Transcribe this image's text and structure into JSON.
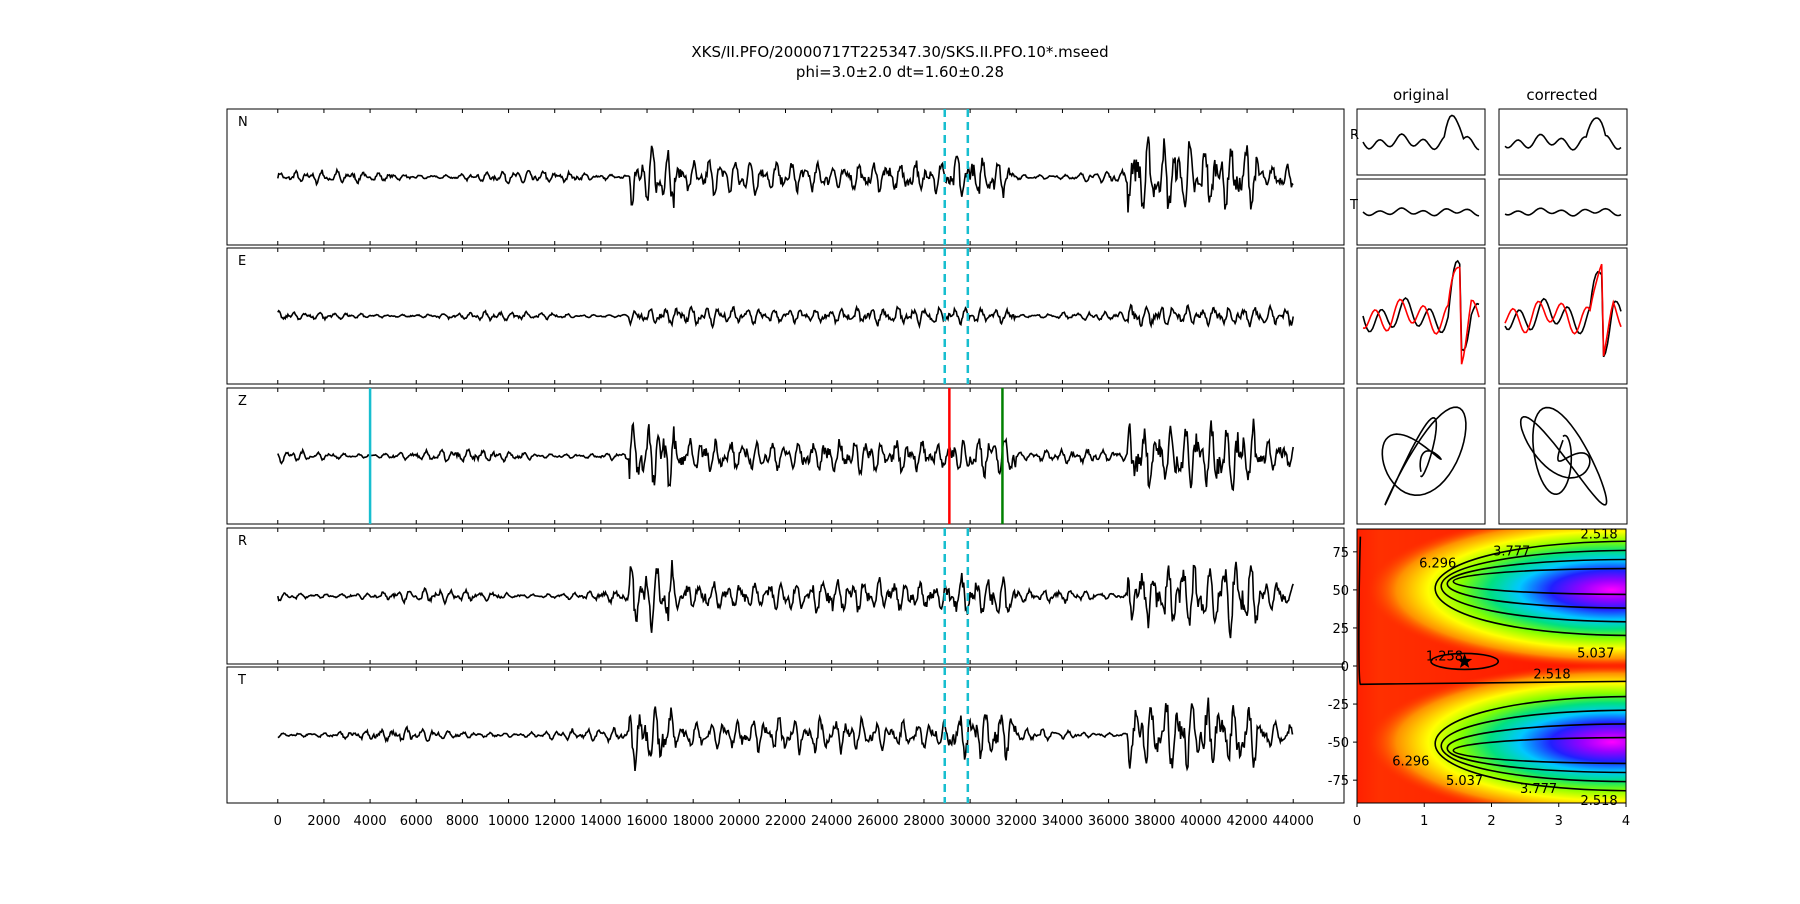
{
  "title": "XKS/II.PFO/20000717T225347.30/SKS.II.PFO.10*.mseed",
  "subtitle": "phi=3.0±2.0 dt=1.60±0.28",
  "chart_data": [
    {
      "type": "line",
      "panel": "waveforms",
      "traces": [
        "N",
        "E",
        "Z",
        "R",
        "T"
      ],
      "x_ticks": [
        0,
        2000,
        4000,
        6000,
        8000,
        10000,
        12000,
        14000,
        16000,
        18000,
        20000,
        22000,
        24000,
        26000,
        28000,
        30000,
        32000,
        34000,
        36000,
        38000,
        40000,
        42000,
        44000
      ],
      "xlim": [
        -2200,
        46200
      ],
      "x_extent": [
        0,
        44000
      ],
      "window_dashed": [
        28900,
        29900
      ],
      "window_color": "#17becf",
      "z_picks": [
        {
          "x": 4000,
          "color": "#17becf"
        },
        {
          "x": 29100,
          "color": "#ff0000"
        },
        {
          "x": 31400,
          "color": "#008000"
        }
      ]
    },
    {
      "type": "line",
      "panel": "particle-motion",
      "column_titles": [
        "original",
        "corrected"
      ],
      "row_labels": [
        "R",
        "T"
      ],
      "series_colors": [
        "#000000",
        "#ff0000"
      ]
    },
    {
      "type": "heatmap",
      "panel": "energy-grid",
      "x_ticks": [
        0,
        1,
        2,
        3,
        4
      ],
      "y_ticks": [
        75,
        50,
        25,
        0,
        -25,
        -50,
        -75
      ],
      "xlim": [
        0,
        4
      ],
      "ylim": [
        -90,
        90
      ],
      "contour_labels": [
        "2.518",
        "3.777",
        "6.296",
        "1.258",
        "2.518",
        "5.037",
        "6.296",
        "5.037",
        "3.777",
        "2.518"
      ],
      "best": {
        "dt": 1.6,
        "phi": 3.0
      }
    }
  ]
}
